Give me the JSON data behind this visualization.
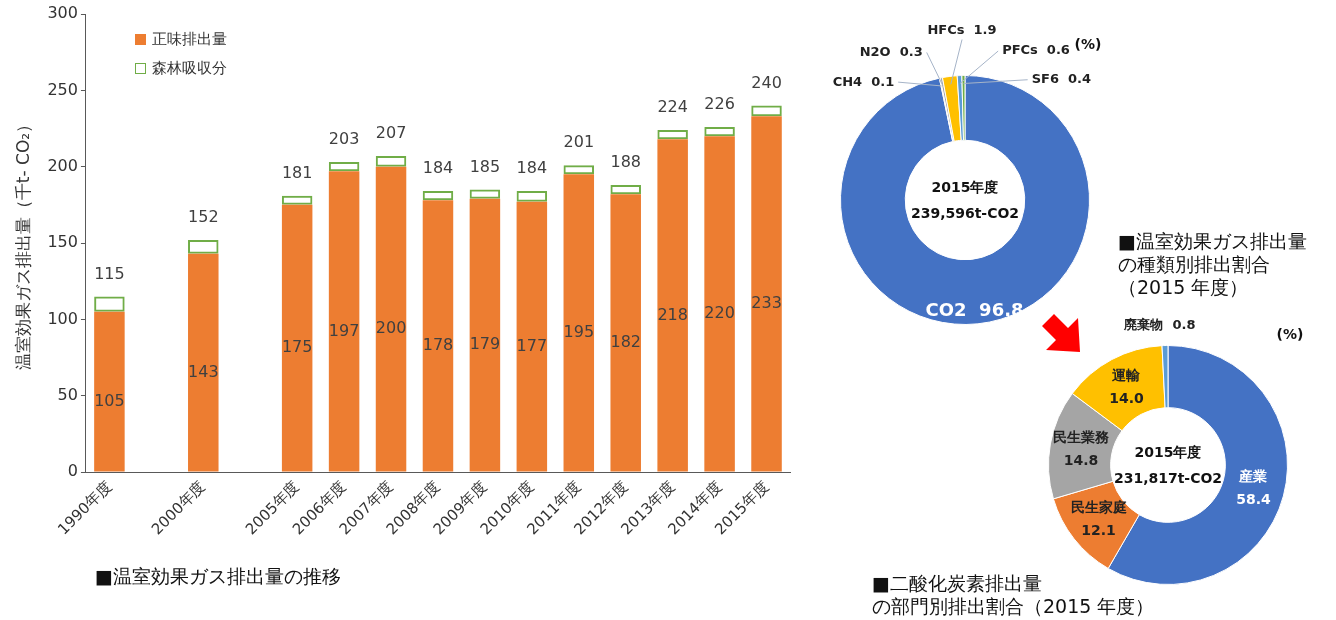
{
  "chart_data": [
    {
      "type": "bar",
      "title": "■温室効果ガス排出量の推移",
      "ylabel": "温室効果ガス排出量（千t- CO₂）",
      "categories": [
        "1990年度",
        null,
        "2000年度",
        null,
        "2005年度",
        "2006年度",
        "2007年度",
        "2008年度",
        "2009年度",
        "2010年度",
        "2011年度",
        "2012年度",
        "2013年度",
        "2014年度",
        "2015年度"
      ],
      "stacked": true,
      "series": [
        {
          "name": "正味排出量",
          "color": "#ed7d31",
          "values": [
            105,
            null,
            143,
            null,
            175,
            197,
            200,
            178,
            179,
            177,
            195,
            182,
            218,
            220,
            233
          ],
          "value_labels": [
            "105",
            null,
            "143",
            null,
            "175",
            "197",
            "200",
            "178",
            "179",
            "177",
            "195",
            "182",
            "218",
            "220",
            "233"
          ]
        },
        {
          "name": "森林吸収分",
          "color": "#70ad47",
          "values": [
            10,
            null,
            9,
            null,
            6,
            6,
            7,
            6,
            6,
            7,
            6,
            6,
            6,
            6,
            7
          ]
        }
      ],
      "totals": [
        "115",
        null,
        "152",
        null,
        "181",
        "203",
        "207",
        "184",
        "185",
        "184",
        "201",
        "188",
        "224",
        "226",
        "240"
      ],
      "ylim": [
        0,
        300
      ],
      "yticks": [
        0,
        50,
        100,
        150,
        200,
        250,
        300
      ],
      "grid": false,
      "legend": "top left"
    },
    {
      "type": "donut",
      "title": "■温室効果ガス排出量の種類別排出割合（2015 年度）",
      "categories": [
        "CO2",
        "CH4",
        "N2O",
        "HFCs",
        "PFCs",
        "SF6"
      ],
      "values": [
        96.8,
        0.1,
        0.3,
        1.9,
        0.6,
        0.4
      ],
      "value_labels": [
        "96.8",
        "0.1",
        "0.3",
        "1.9",
        "0.6",
        "0.4"
      ],
      "colors": [
        "#4472c4",
        "#ed7d31",
        "#a5a5a5",
        "#ffc000",
        "#5b9bd5",
        "#70ad47"
      ],
      "annotations": [
        "2015年度",
        "239,596t-CO2",
        "(%)"
      ]
    },
    {
      "type": "donut",
      "title": "■二酸化炭素排出量の部門別排出割合（2015 年度）",
      "categories": [
        "産業",
        "民生家庭",
        "民生業務",
        "運輸",
        "廃棄物"
      ],
      "values": [
        58.4,
        12.1,
        14.8,
        14.0,
        0.8
      ],
      "value_labels": [
        "58.4",
        "12.1",
        "14.8",
        "14.0",
        "0.8"
      ],
      "colors": [
        "#4472c4",
        "#ed7d31",
        "#a5a5a5",
        "#ffc000",
        "#5b9bd5"
      ],
      "annotations": [
        "2015年度",
        "231,817t-CO2",
        "(%)"
      ]
    }
  ]
}
